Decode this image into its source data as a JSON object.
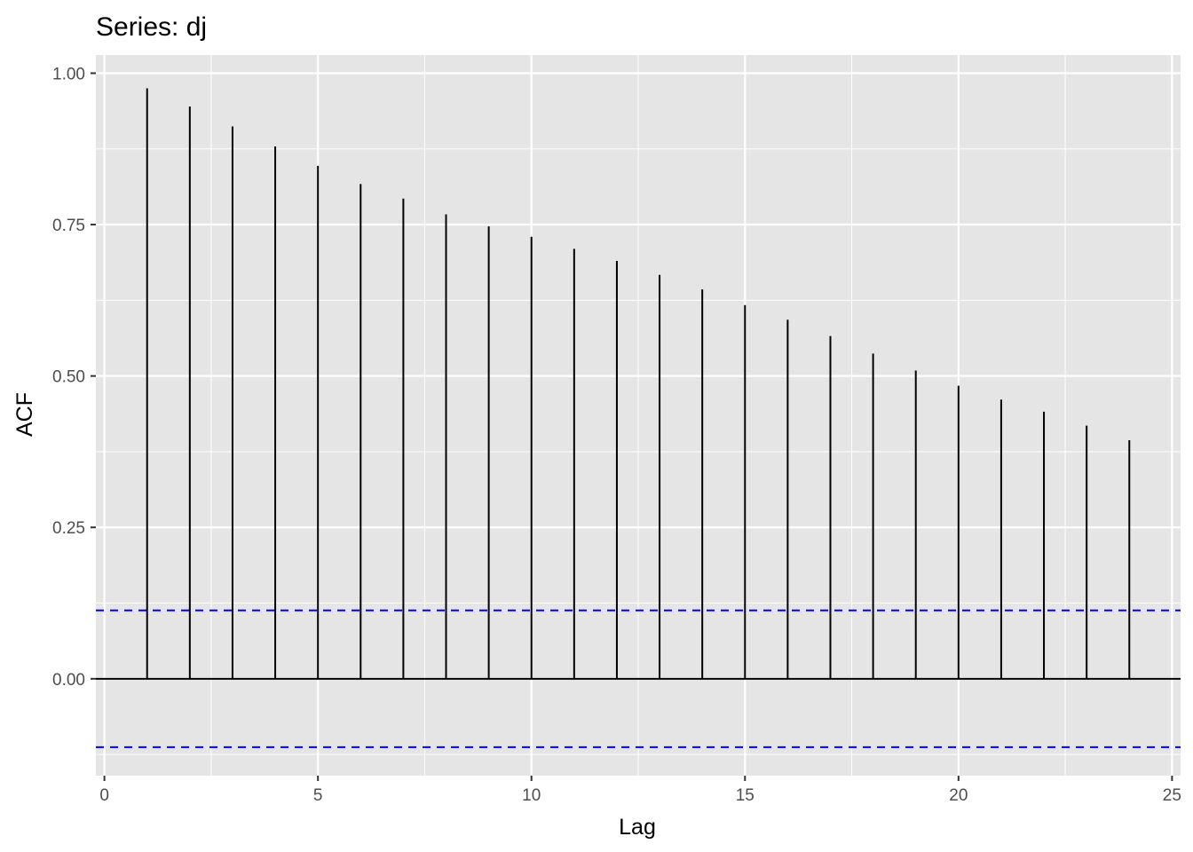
{
  "chart_data": {
    "type": "bar",
    "title": "Series: dj",
    "xlabel": "Lag",
    "ylabel": "ACF",
    "xlim": [
      -0.2,
      25.2
    ],
    "ylim": [
      -0.16,
      1.03
    ],
    "x_ticks": [
      0,
      5,
      10,
      15,
      20,
      25
    ],
    "x_tick_labels": [
      "0",
      "5",
      "10",
      "15",
      "20",
      "25"
    ],
    "y_ticks": [
      0.0,
      0.25,
      0.5,
      0.75,
      1.0
    ],
    "y_tick_labels": [
      "0.00",
      "0.25",
      "0.50",
      "0.75",
      "1.00"
    ],
    "lags": [
      1,
      2,
      3,
      4,
      5,
      6,
      7,
      8,
      9,
      10,
      11,
      12,
      13,
      14,
      15,
      16,
      17,
      18,
      19,
      20,
      21,
      22,
      23,
      24
    ],
    "acf": [
      0.975,
      0.945,
      0.912,
      0.879,
      0.847,
      0.817,
      0.793,
      0.767,
      0.747,
      0.73,
      0.71,
      0.69,
      0.667,
      0.643,
      0.617,
      0.593,
      0.566,
      0.537,
      0.509,
      0.484,
      0.461,
      0.441,
      0.418,
      0.394
    ],
    "confidence_bound": 0.113,
    "grid": true,
    "colors": {
      "panel": "#e5e5e5",
      "grid": "#ffffff",
      "bar": "#000000",
      "zero_line": "#000000",
      "confidence": "#0000ff"
    }
  }
}
